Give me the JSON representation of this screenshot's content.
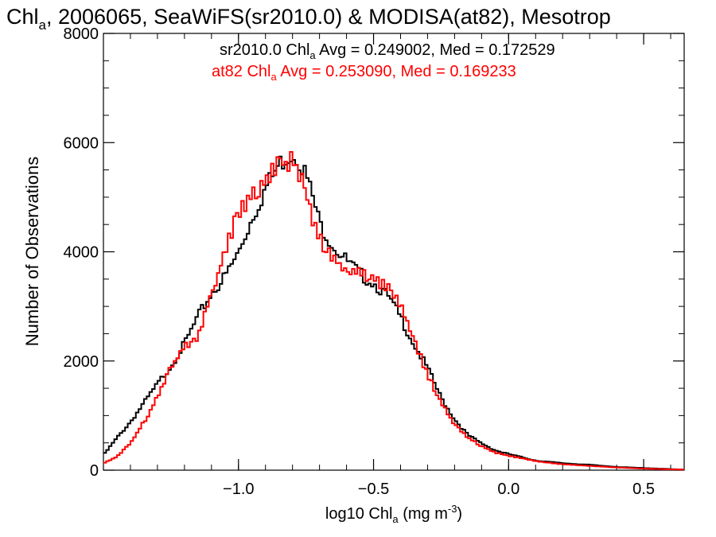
{
  "chart_data": {
    "type": "line",
    "title": {
      "main": "Chl",
      "main_sub": "a",
      "rest": ", 2006065, SeaWiFS(sr2010.0) & MODISA(at82), Mesotrop"
    },
    "xlabel": {
      "main": "log10 Chl",
      "sub": "a",
      "units": " (mg m",
      "sup": "-3",
      "close": ")"
    },
    "ylabel": "Number of Observations",
    "xlim": [
      -1.5,
      0.65
    ],
    "ylim": [
      0,
      8000
    ],
    "x_ticks": [
      {
        "value": -1.0,
        "label": "−1.0"
      },
      {
        "value": -0.5,
        "label": "−0.5"
      },
      {
        "value": 0.0,
        "label": "0.0"
      },
      {
        "value": 0.5,
        "label": "0.5"
      }
    ],
    "y_ticks": [
      {
        "value": 0,
        "label": "0"
      },
      {
        "value": 2000,
        "label": "2000"
      },
      {
        "value": 4000,
        "label": "4000"
      },
      {
        "value": 6000,
        "label": "6000"
      },
      {
        "value": 8000,
        "label": "8000"
      }
    ],
    "legend_position": "top-right",
    "series": [
      {
        "name": "sr2010.0",
        "color": "#000000",
        "legend": {
          "prefix": "sr2010.0 Chl",
          "sub": "a",
          "suffix": " Avg = 0.249002, Med = 0.172529"
        },
        "x": [
          -1.5,
          -1.45,
          -1.4,
          -1.35,
          -1.3,
          -1.25,
          -1.2,
          -1.15,
          -1.1,
          -1.05,
          -1.0,
          -0.95,
          -0.9,
          -0.85,
          -0.82,
          -0.8,
          -0.78,
          -0.75,
          -0.72,
          -0.7,
          -0.65,
          -0.6,
          -0.55,
          -0.5,
          -0.45,
          -0.4,
          -0.35,
          -0.3,
          -0.25,
          -0.2,
          -0.15,
          -0.1,
          -0.05,
          0.0,
          0.05,
          0.1,
          0.2,
          0.3,
          0.4,
          0.5,
          0.6,
          0.65
        ],
        "y": [
          280,
          600,
          900,
          1250,
          1600,
          1950,
          2350,
          2850,
          3300,
          3600,
          4050,
          4700,
          5250,
          5700,
          5850,
          5900,
          5850,
          5500,
          5000,
          4600,
          4200,
          3900,
          3650,
          3500,
          3250,
          2850,
          2350,
          1900,
          1350,
          950,
          650,
          500,
          370,
          300,
          240,
          180,
          130,
          100,
          60,
          40,
          20,
          10
        ]
      },
      {
        "name": "at82",
        "color": "#ff0000",
        "legend": {
          "prefix": "at82 Chl",
          "sub": "a",
          "suffix": " Avg = 0.253090, Med = 0.169233"
        },
        "x": [
          -1.5,
          -1.45,
          -1.4,
          -1.35,
          -1.3,
          -1.25,
          -1.2,
          -1.15,
          -1.1,
          -1.05,
          -1.0,
          -0.95,
          -0.9,
          -0.85,
          -0.82,
          -0.8,
          -0.78,
          -0.75,
          -0.72,
          -0.7,
          -0.65,
          -0.6,
          -0.55,
          -0.5,
          -0.45,
          -0.4,
          -0.35,
          -0.3,
          -0.25,
          -0.2,
          -0.15,
          -0.1,
          -0.05,
          0.0,
          0.05,
          0.1,
          0.2,
          0.3,
          0.4,
          0.5,
          0.6,
          0.65
        ],
        "y": [
          130,
          250,
          500,
          900,
          1350,
          1900,
          2300,
          2500,
          3300,
          4050,
          4800,
          5150,
          5400,
          5750,
          5650,
          5800,
          5550,
          5200,
          4600,
          4300,
          4000,
          3700,
          3650,
          3550,
          3400,
          3050,
          2400,
          1800,
          1250,
          850,
          600,
          450,
          330,
          270,
          220,
          170,
          110,
          80,
          50,
          30,
          15,
          10
        ]
      }
    ]
  }
}
